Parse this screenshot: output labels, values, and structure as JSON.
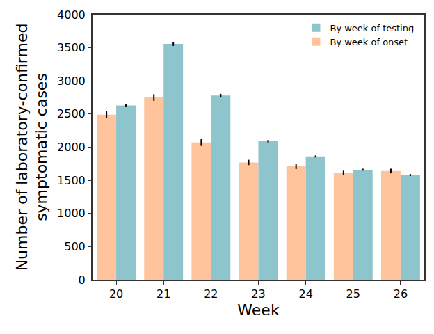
{
  "chart_data": {
    "type": "bar",
    "x_label": "Week",
    "y_label": "Number of laboratory-confirmed\nsymptomatic cases",
    "categories": [
      "20",
      "21",
      "22",
      "23",
      "24",
      "25",
      "26"
    ],
    "series": [
      {
        "name": "By week of onset",
        "color": "#ffc49c",
        "values": [
          2490,
          2750,
          2070,
          1770,
          1710,
          1610,
          1640
        ],
        "errors": [
          50,
          50,
          50,
          40,
          40,
          35,
          35
        ]
      },
      {
        "name": "By week of testing",
        "color": "#8ec4cc",
        "values": [
          2630,
          3560,
          2780,
          2090,
          1860,
          1660,
          1580
        ],
        "errors": [
          25,
          30,
          25,
          20,
          15,
          15,
          15
        ]
      }
    ],
    "ylim": [
      0,
      4000
    ],
    "yticks": [
      0,
      500,
      1000,
      1500,
      2000,
      2500,
      3000,
      3500,
      4000
    ],
    "legend": "upper right",
    "grid": false
  }
}
